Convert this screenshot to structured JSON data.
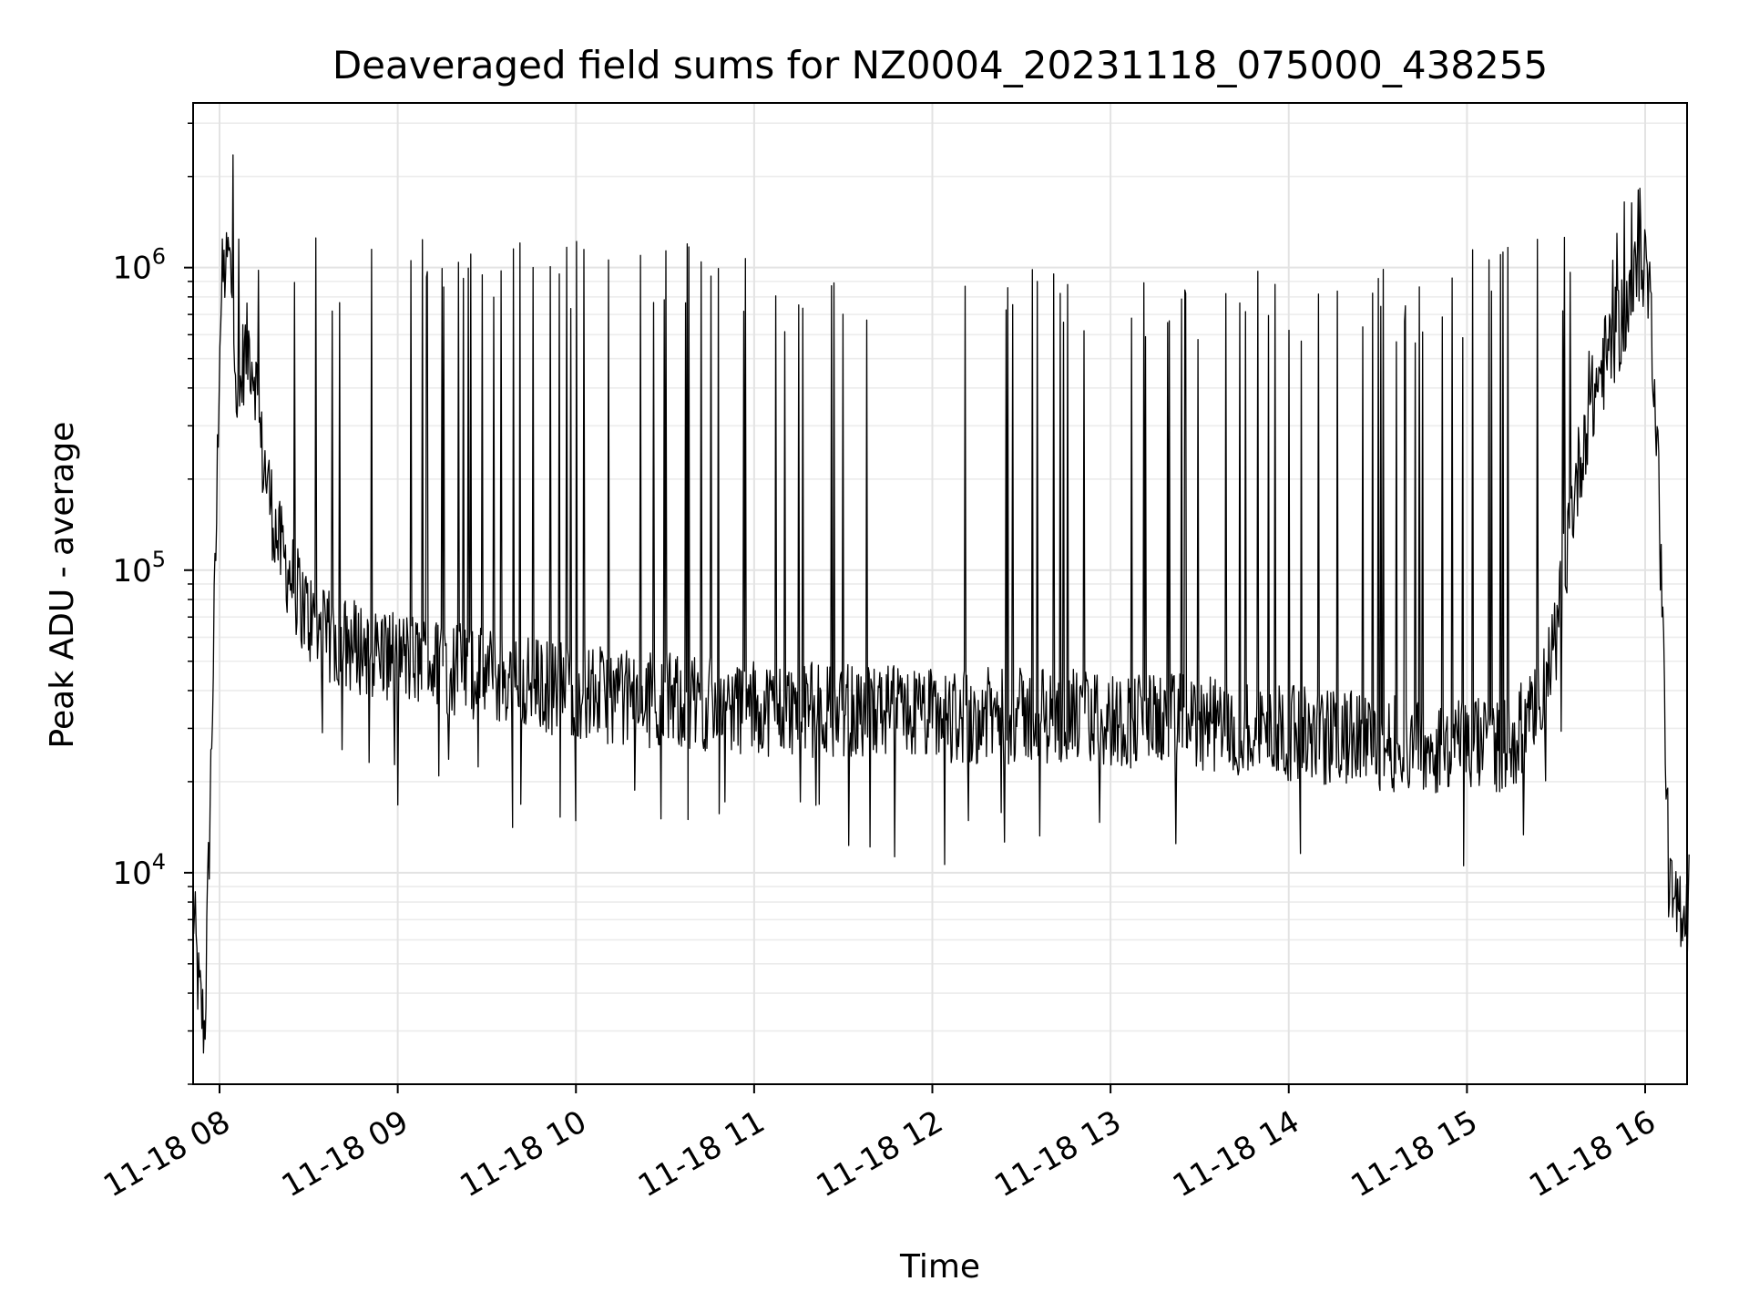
{
  "chart_data": {
    "type": "line",
    "title": "Deaveraged field sums for NZ0004_20231118_075000_438255",
    "xlabel": "Time",
    "ylabel": "Peak ADU - average",
    "yscale": "log",
    "ylim": [
      2000,
      3500000
    ],
    "xlim": [
      "2023-11-18 07:50",
      "2023-11-18 16:15"
    ],
    "x_ticks": [
      "11-18 08",
      "11-18 09",
      "11-18 10",
      "11-18 11",
      "11-18 12",
      "11-18 13",
      "11-18 14",
      "11-18 15",
      "11-18 16"
    ],
    "y_ticks": [
      {
        "base": "10",
        "exp": "4",
        "value": 10000
      },
      {
        "base": "10",
        "exp": "5",
        "value": 100000
      },
      {
        "base": "10",
        "exp": "6",
        "value": 1000000
      }
    ],
    "grid": "both (major and minor)",
    "line_color": "#000000",
    "series": [
      {
        "x": [
          "07:51",
          "07:53",
          "07:55",
          "07:57",
          "07:59",
          "08:00",
          "08:01",
          "08:02",
          "08:03",
          "08:04",
          "08:05",
          "08:06",
          "08:08",
          "08:10",
          "08:12",
          "08:14",
          "08:16",
          "08:18",
          "08:20",
          "08:25",
          "08:30",
          "08:35",
          "08:40",
          "08:50",
          "09:00",
          "09:15",
          "09:30",
          "09:45",
          "10:00",
          "10:15",
          "10:30",
          "10:45",
          "11:00",
          "11:15",
          "11:30",
          "11:45",
          "12:00",
          "12:15",
          "12:30",
          "12:45",
          "13:00",
          "13:15",
          "13:30",
          "13:45",
          "14:00",
          "14:15",
          "14:30",
          "14:45",
          "15:00",
          "15:15",
          "15:25",
          "15:30",
          "15:35",
          "15:40",
          "15:45",
          "15:50",
          "15:55",
          "16:00",
          "16:02",
          "16:04",
          "16:06",
          "16:08",
          "16:10",
          "16:12",
          "16:14",
          "16:15"
        ],
        "y": [
          8000,
          4000,
          3000,
          20000,
          150000,
          600000,
          900000,
          1000000,
          1100000,
          900000,
          700000,
          300000,
          500000,
          550000,
          450000,
          250000,
          200000,
          150000,
          120000,
          90000,
          70000,
          60000,
          58000,
          55000,
          52000,
          48000,
          45000,
          42000,
          40000,
          38000,
          37000,
          36000,
          35000,
          35000,
          34000,
          34000,
          33000,
          33000,
          33000,
          33000,
          32000,
          32000,
          31000,
          30000,
          29000,
          28000,
          27000,
          26000,
          26000,
          27000,
          35000,
          60000,
          150000,
          300000,
          450000,
          600000,
          800000,
          1100000,
          700000,
          300000,
          60000,
          9000,
          7000,
          8000,
          7500,
          9000
        ]
      }
    ],
    "description": "Dense noisy time series with frequent narrow spikes reaching ~1e6 throughout the night; baseline decays from ~2e5 after 08:15 to ~3e4 mid-night and rises again after 15:30."
  }
}
